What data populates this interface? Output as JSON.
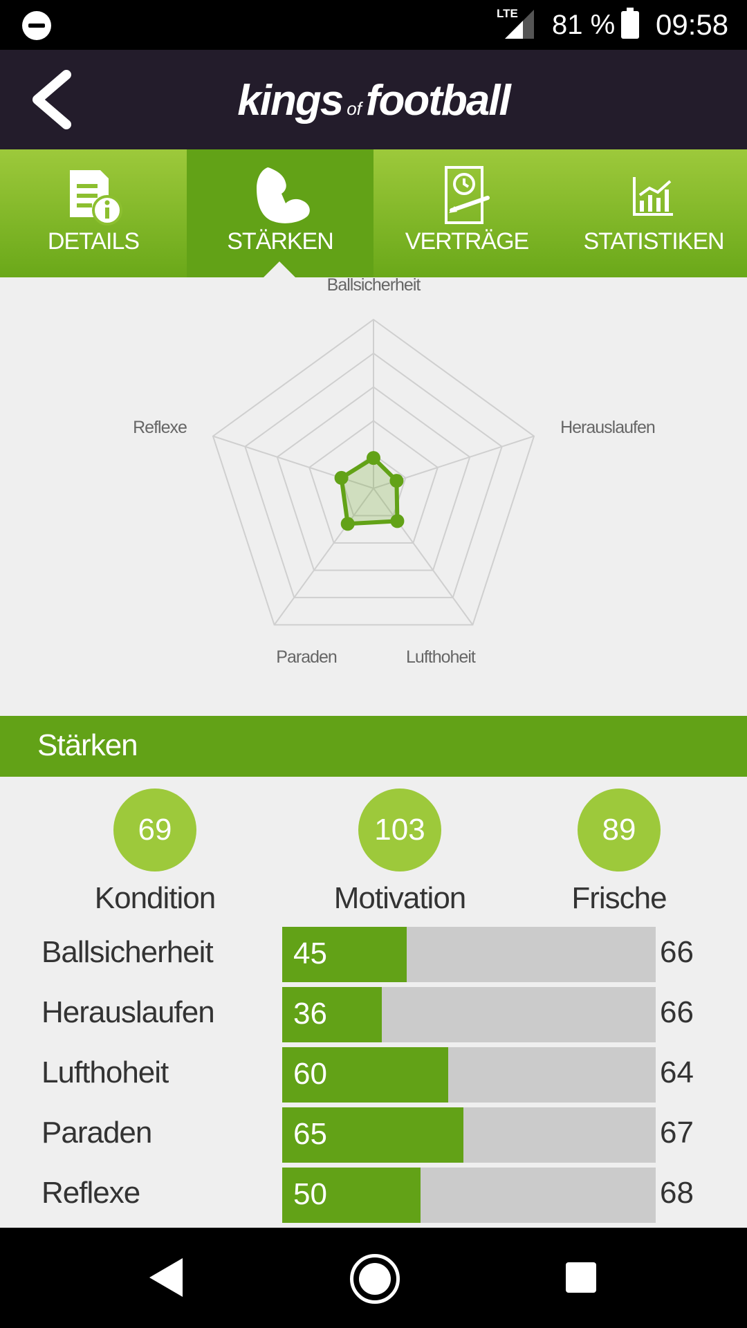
{
  "status_bar": {
    "network": "LTE",
    "battery": "81 %",
    "time": "09:58"
  },
  "header": {
    "brand_part1": "kings",
    "brand_part2": "of",
    "brand_part3": "football"
  },
  "tabs": [
    {
      "label": "DETAILS",
      "icon": "document-info-icon",
      "active": false
    },
    {
      "label": "STÄRKEN",
      "icon": "flexed-bicep-icon",
      "active": true
    },
    {
      "label": "VERTRÄGE",
      "icon": "contract-clock-icon",
      "active": false
    },
    {
      "label": "STATISTIKEN",
      "icon": "bar-chart-icon",
      "active": false
    }
  ],
  "chart_data": {
    "type": "radar",
    "axes": [
      "Ballsicherheit",
      "Herauslaufen",
      "Lufthoheit",
      "Paraden",
      "Reflexe"
    ],
    "values": [
      45,
      36,
      60,
      65,
      50
    ],
    "rlim": [
      0,
      250
    ],
    "grid": true,
    "color": "#62a217"
  },
  "section": {
    "title": "Stärken"
  },
  "summary": [
    {
      "value": "69",
      "label": "Kondition"
    },
    {
      "value": "103",
      "label": "Motivation"
    },
    {
      "value": "89",
      "label": "Frische"
    }
  ],
  "attributes": [
    {
      "name": "Ballsicherheit",
      "value": 45,
      "max": 66,
      "fill_fraction": 0.333
    },
    {
      "name": "Herauslaufen",
      "value": 36,
      "max": 66,
      "fill_fraction": 0.267
    },
    {
      "name": "Lufthoheit",
      "value": 60,
      "max": 64,
      "fill_fraction": 0.444
    },
    {
      "name": "Paraden",
      "value": 65,
      "max": 67,
      "fill_fraction": 0.485
    },
    {
      "name": "Reflexe",
      "value": 50,
      "max": 68,
      "fill_fraction": 0.37
    }
  ],
  "colors": {
    "accent": "#62a217",
    "accent_light": "#9dc93b",
    "header_bg": "#231c2b"
  }
}
